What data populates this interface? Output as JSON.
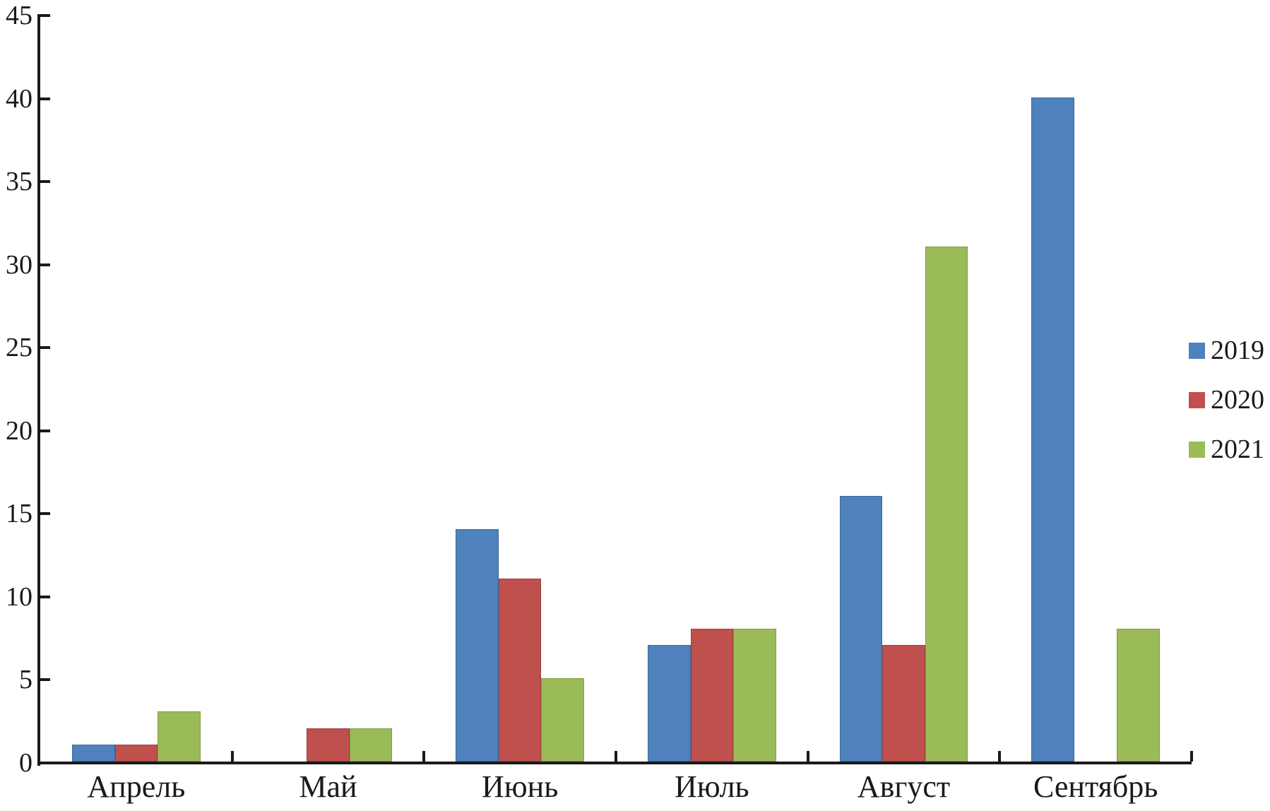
{
  "chart_data": {
    "type": "bar",
    "title": "",
    "xlabel": "",
    "ylabel": "",
    "categories": [
      "Апрель",
      "Май",
      "Июнь",
      "Июль",
      "Август",
      "Сентябрь"
    ],
    "series": [
      {
        "name": "2019",
        "color": "#4F81BD",
        "border": "#3d6899",
        "values": [
          1,
          0,
          14,
          7,
          16,
          40
        ]
      },
      {
        "name": "2020",
        "color": "#C0504D",
        "border": "#9c3f3d",
        "values": [
          1,
          2,
          11,
          8,
          7,
          0
        ]
      },
      {
        "name": "2021",
        "color": "#9BBB59",
        "border": "#7e9a45",
        "values": [
          3,
          2,
          5,
          8,
          31,
          8
        ]
      }
    ],
    "ylim": [
      0,
      45
    ],
    "yticks": [
      0,
      5,
      10,
      15,
      20,
      25,
      30,
      35,
      40,
      45
    ],
    "grid": false,
    "legend_position": "right",
    "axis_color": "#1a1a1a",
    "background_color": "#ffffff"
  }
}
